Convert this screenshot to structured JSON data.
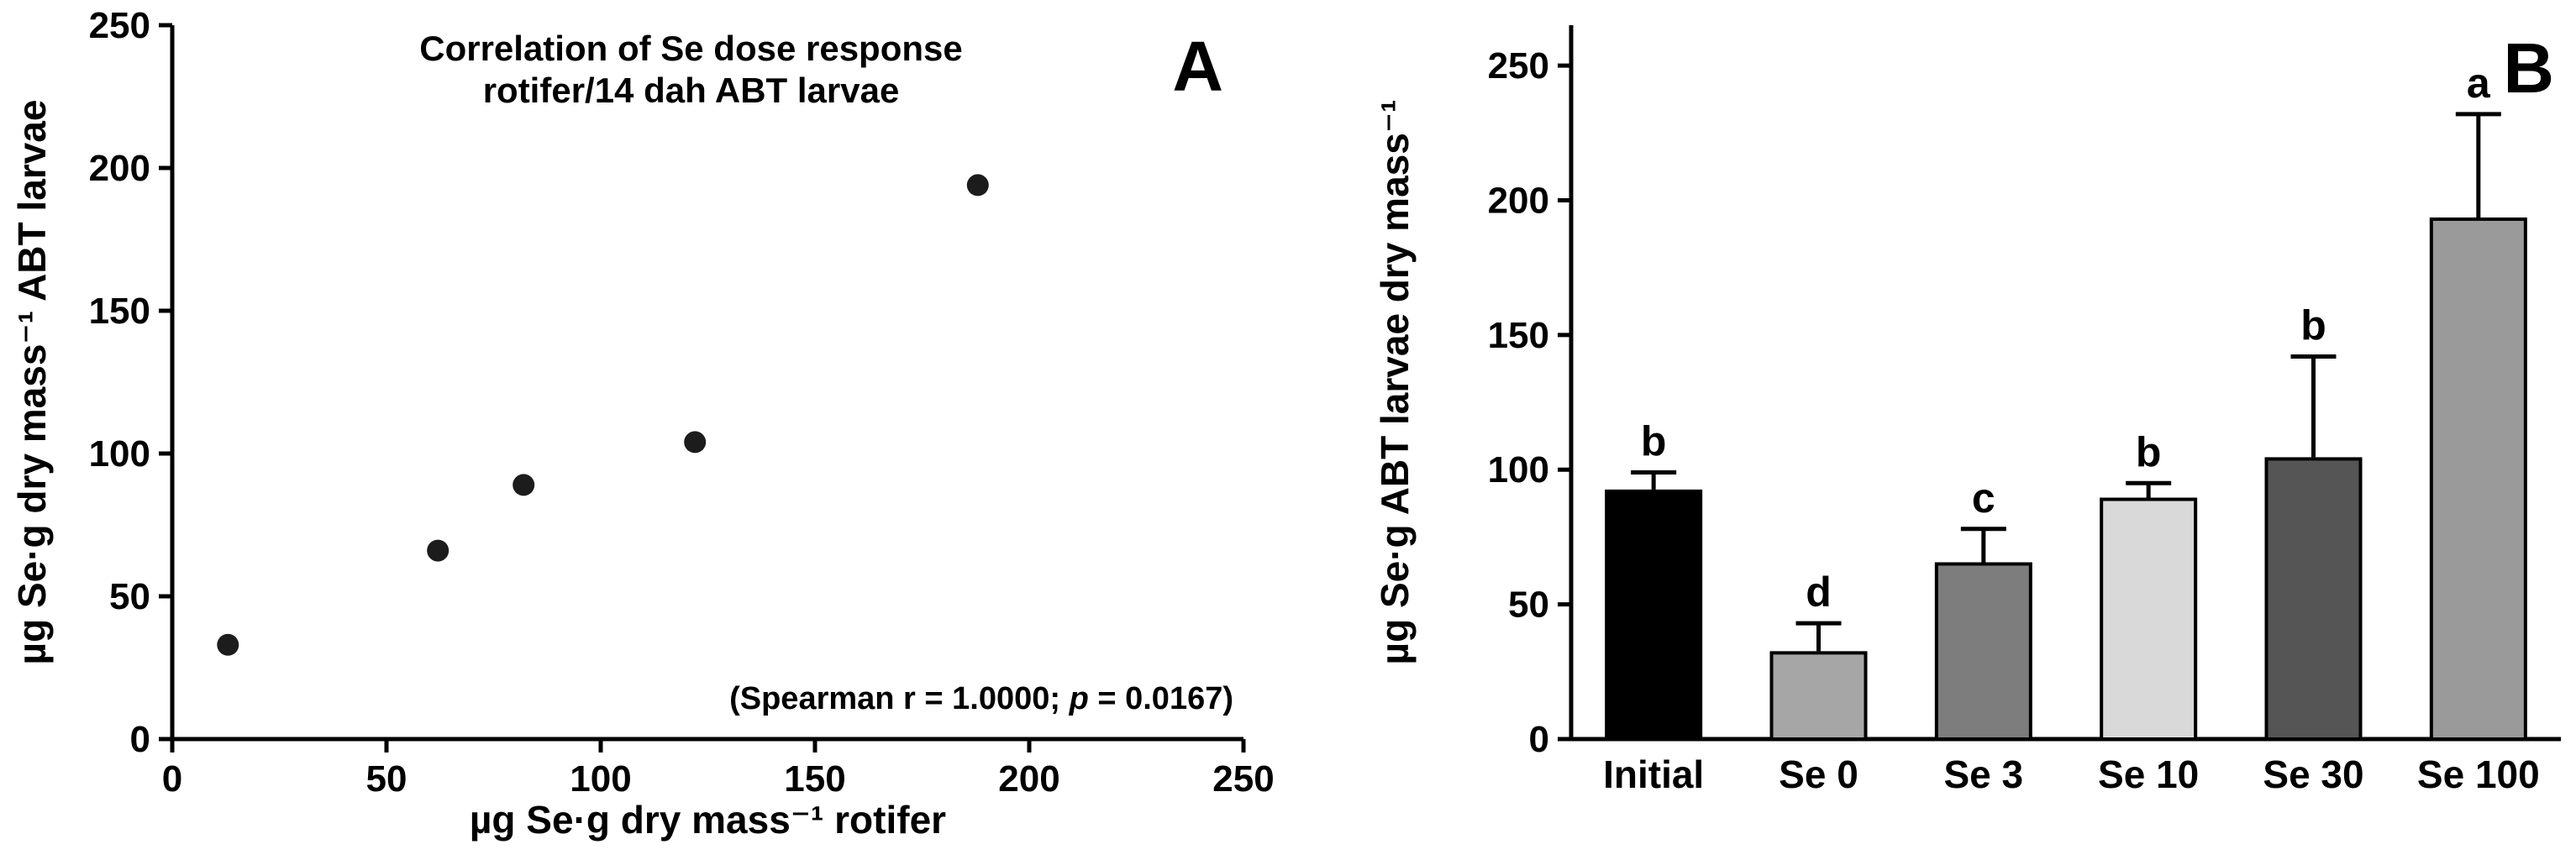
{
  "page": {
    "background": "#ffffff",
    "text_color": "#000000"
  },
  "chart_data": [
    {
      "type": "scatter",
      "panel_label": "A",
      "title_lines": [
        "Correlation of Se dose response",
        "rotifer/14 dah ABT larvae"
      ],
      "xlabel": "µg Se·g dry mass⁻¹ rotifer",
      "ylabel": "µg Se·g dry mass⁻¹ ABT larvae",
      "xlim": [
        0,
        250
      ],
      "ylim": [
        0,
        250
      ],
      "xticks": [
        "0",
        "50",
        "100",
        "150",
        "200",
        "250"
      ],
      "yticks": [
        "0",
        "50",
        "100",
        "150",
        "200",
        "250"
      ],
      "points": [
        [
          13,
          33
        ],
        [
          62,
          66
        ],
        [
          82,
          89
        ],
        [
          122,
          104
        ],
        [
          188,
          194
        ]
      ],
      "annotation": {
        "prefix": "(Spearman r = 1.0000; ",
        "italic_var": "p",
        "suffix": " = 0.0167)"
      },
      "marker_color": "#1c1c1c",
      "axis_color": "#000000",
      "grid": false,
      "legend": "none"
    },
    {
      "type": "bar",
      "panel_label": "B",
      "xlabel": "",
      "ylabel": "µg Se·g ABT larvae dry mass⁻¹",
      "ylim": [
        0,
        265
      ],
      "yticks": [
        "0",
        "50",
        "100",
        "150",
        "200",
        "250"
      ],
      "categories": [
        "Initial",
        "Se 0",
        "Se 3",
        "Se 10",
        "Se 30",
        "Se 100"
      ],
      "values": [
        92,
        32,
        65,
        89,
        104,
        193
      ],
      "errors_plus": [
        7,
        11,
        13,
        6,
        38,
        39
      ],
      "significance_letters": [
        "b",
        "d",
        "c",
        "b",
        "b",
        "a"
      ],
      "bar_colors": [
        "#000000",
        "#a6a6a6",
        "#7d7d7d",
        "#d9d9d9",
        "#555555",
        "#9a9a9a"
      ],
      "bar_outline": "#000000",
      "error_color": "#000000",
      "axis_color": "#000000",
      "grid": false,
      "legend": "none"
    }
  ]
}
